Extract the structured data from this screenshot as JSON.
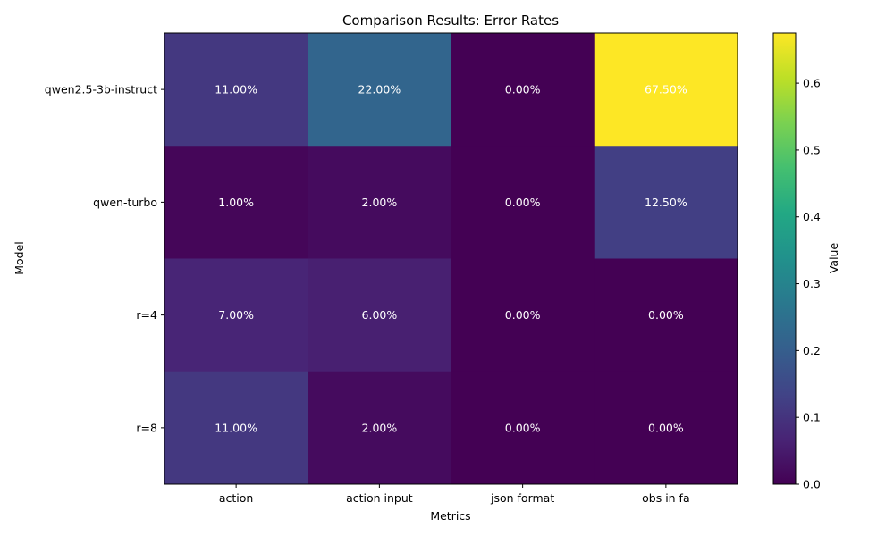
{
  "chart_data": {
    "type": "heatmap",
    "title": "Comparison Results: Error Rates",
    "xlabel": "Metrics",
    "ylabel": "Model",
    "x_categories": [
      "action",
      "action input",
      "json format",
      "obs in fa"
    ],
    "y_categories": [
      "qwen2.5-3b-instruct",
      "qwen-turbo",
      "r=4",
      "r=8"
    ],
    "values": [
      [
        0.11,
        0.22,
        0.0,
        0.675
      ],
      [
        0.01,
        0.02,
        0.0,
        0.125
      ],
      [
        0.07,
        0.06,
        0.0,
        0.0
      ],
      [
        0.11,
        0.02,
        0.0,
        0.0
      ]
    ],
    "cell_labels": [
      [
        "11.00%",
        "22.00%",
        "0.00%",
        "67.50%"
      ],
      [
        "1.00%",
        "2.00%",
        "0.00%",
        "12.50%"
      ],
      [
        "7.00%",
        "6.00%",
        "0.00%",
        "0.00%"
      ],
      [
        "11.00%",
        "2.00%",
        "0.00%",
        "0.00%"
      ]
    ],
    "colormap": "viridis",
    "vmin": 0.0,
    "vmax": 0.675,
    "colorbar": {
      "label": "Value",
      "ticks": [
        0.0,
        0.1,
        0.2,
        0.3,
        0.4,
        0.5,
        0.6
      ],
      "tick_labels": [
        "0.0",
        "0.1",
        "0.2",
        "0.3",
        "0.4",
        "0.5",
        "0.6"
      ]
    }
  }
}
